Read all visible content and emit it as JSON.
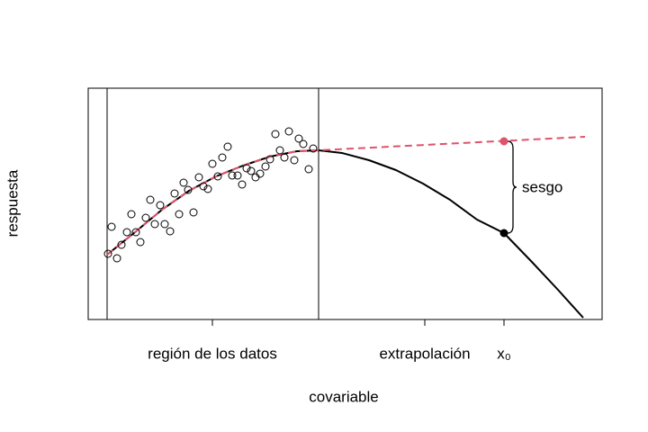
{
  "chart_data": {
    "type": "scatter",
    "xlabel": "covariable",
    "ylabel": "respuesta",
    "xlim": [
      0,
      571
    ],
    "ylim": [
      0,
      257
    ],
    "xticks": [
      {
        "value": 138,
        "label": "región de los datos"
      },
      {
        "value": 374,
        "label": "extrapolación"
      },
      {
        "value": 462,
        "label": "x₀"
      }
    ],
    "reference_lines": [
      21,
      256
    ],
    "points": {
      "color": "#000000",
      "x": [
        22,
        26,
        32,
        37,
        43,
        48,
        53,
        58,
        64,
        69,
        74,
        80,
        85,
        91,
        96,
        101,
        106,
        111,
        117,
        123,
        128,
        133,
        138,
        144,
        149,
        155,
        160,
        166,
        171,
        176,
        181,
        186,
        191,
        197,
        202,
        208,
        213,
        218,
        223,
        229,
        234,
        239,
        245,
        250
      ],
      "y": [
        73,
        103,
        68,
        83,
        97,
        117,
        97,
        86,
        113,
        133,
        106,
        127,
        106,
        98,
        140,
        117,
        152,
        144,
        119,
        158,
        148,
        145,
        173,
        159,
        180,
        192,
        160,
        160,
        150,
        168,
        165,
        158,
        162,
        170,
        178,
        206,
        188,
        180,
        209,
        177,
        201,
        195,
        167,
        190
      ]
    },
    "true_curve": {
      "color": "#000000",
      "x": [
        21,
        52,
        82,
        112,
        142,
        172,
        202,
        232,
        256,
        282,
        312,
        342,
        372,
        402,
        432,
        462,
        492,
        522,
        550
      ],
      "y": [
        72,
        97,
        122,
        143,
        159,
        171,
        181,
        187,
        188,
        185,
        177,
        166,
        151,
        133,
        111,
        96,
        65,
        33,
        2
      ]
    },
    "fitted_curve": {
      "color": "#df536b",
      "dashed": true,
      "x": [
        21,
        52,
        82,
        112,
        142,
        172,
        202,
        232,
        256,
        552
      ],
      "y": [
        72,
        97,
        122,
        143,
        159,
        171,
        181,
        187,
        188,
        203
      ]
    },
    "bias": {
      "label": "sesgo",
      "x": 462,
      "fitted": 198,
      "true": 96
    }
  }
}
